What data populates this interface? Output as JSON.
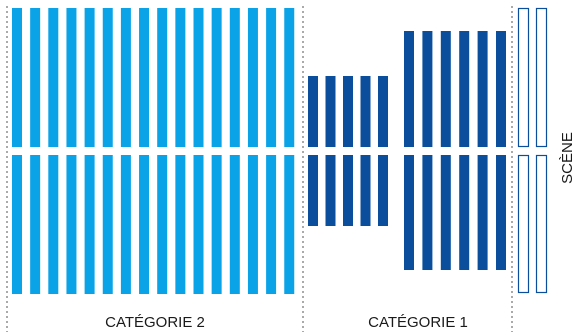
{
  "colors": {
    "categorie2": "#0aa3e8",
    "categorie1": "#0b4f9c",
    "stage_outline": "#0b4f9c",
    "divider": "#555555",
    "text": "#1a1a1a"
  },
  "zones": {
    "categorie2_label": "CATÉGORIE 2",
    "categorie1_label": "CATÉGORIE 1",
    "scene_label": "SCÈNE"
  }
}
